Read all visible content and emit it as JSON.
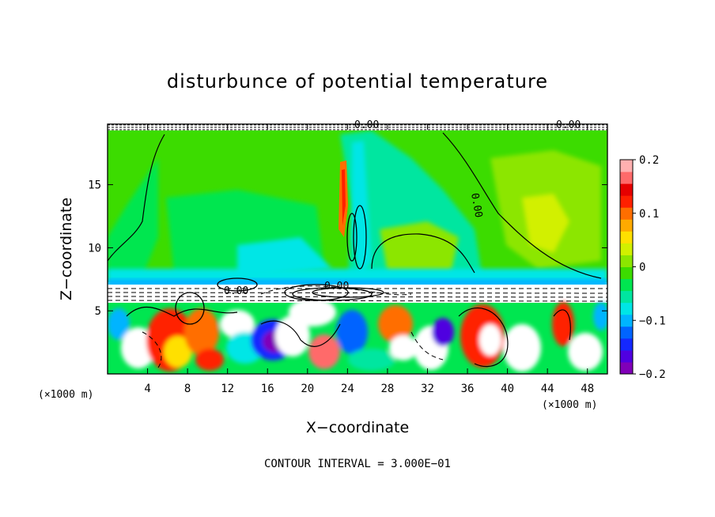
{
  "chart_data": {
    "type": "heatmap",
    "title": "disturbunce of potential temperature",
    "xlabel": "X−coordinate",
    "ylabel": "Z−coordinate",
    "x_unit": "(×1000 m)",
    "x_unit_right": "(×1000 m)",
    "xlim": [
      0,
      50
    ],
    "ylim": [
      0,
      19.8
    ],
    "x_ticks": [
      4,
      8,
      12,
      16,
      20,
      24,
      28,
      32,
      36,
      40,
      44,
      48
    ],
    "x_tick_labels": [
      "4",
      "8",
      "12",
      "16",
      "20",
      "24",
      "28",
      "32",
      "36",
      "40",
      "44",
      "48"
    ],
    "y_ticks": [
      5,
      10,
      15
    ],
    "y_tick_labels": [
      "5",
      "10",
      "15"
    ],
    "colorbar": {
      "range": [
        -0.2,
        0.2
      ],
      "ticks": [
        0.2,
        0.1,
        0,
        -0.1,
        -0.2
      ],
      "tick_labels": [
        "0.2",
        "0.1",
        "0",
        "−0.1",
        "−0.2"
      ],
      "colors": [
        "#8000b8",
        "#5000e0",
        "#1428ff",
        "#0064ff",
        "#00b4ff",
        "#00e6e6",
        "#00e6a0",
        "#00e650",
        "#3cdc00",
        "#8ce600",
        "#d2f000",
        "#ffe000",
        "#ffaa00",
        "#ff6e00",
        "#ff2000",
        "#e60000",
        "#ff6a6a",
        "#ffb0b0"
      ]
    },
    "contour_labels": [
      "0.00",
      "0.00",
      "0.00",
      "0.00",
      "0.00"
    ],
    "contour_interval_note": "CONTOUR INTERVAL = 3.000E−01"
  }
}
